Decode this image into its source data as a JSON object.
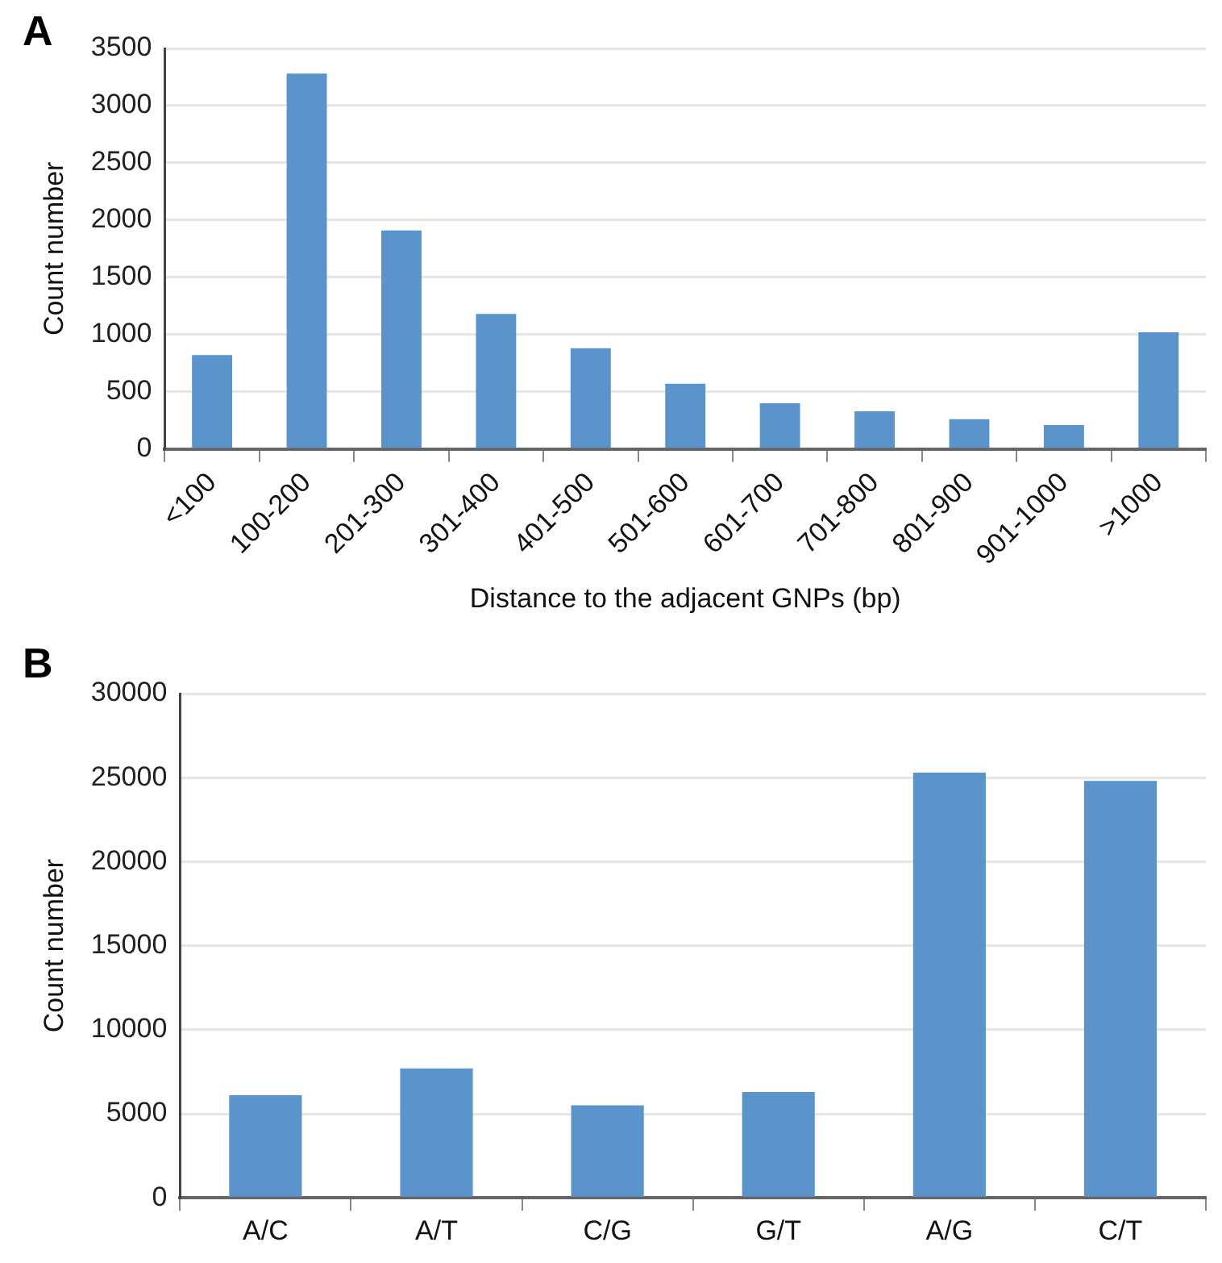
{
  "chart_data": [
    {
      "type": "bar",
      "xlabel": "Distance to the adjacent GNPs (bp)",
      "ylabel": "Count number",
      "annotations": [
        "A"
      ],
      "categories": [
        "<100",
        "100-200",
        "201-300",
        "301-400",
        "401-500",
        "501-600",
        "601-700",
        "701-800",
        "801-900",
        "901-1000",
        ">1000"
      ],
      "values": [
        820,
        3280,
        1910,
        1180,
        880,
        570,
        400,
        330,
        260,
        210,
        1020
      ],
      "color": "#5b93cb",
      "ylim": [
        0,
        3500
      ],
      "yticks": [
        0,
        500,
        1000,
        1500,
        2000,
        2500,
        3000,
        3500
      ],
      "grid": "y"
    },
    {
      "type": "bar",
      "ylabel": "Count number",
      "annotations": [
        "B"
      ],
      "categories": [
        "A/C",
        "A/T",
        "C/G",
        "G/T",
        "A/G",
        "C/T"
      ],
      "values": [
        6100,
        7700,
        5500,
        6300,
        25300,
        24800
      ],
      "color": "#5b93cb",
      "ylim": [
        0,
        30000
      ],
      "yticks": [
        0,
        5000,
        10000,
        15000,
        20000,
        25000,
        30000
      ],
      "grid": "y"
    }
  ]
}
